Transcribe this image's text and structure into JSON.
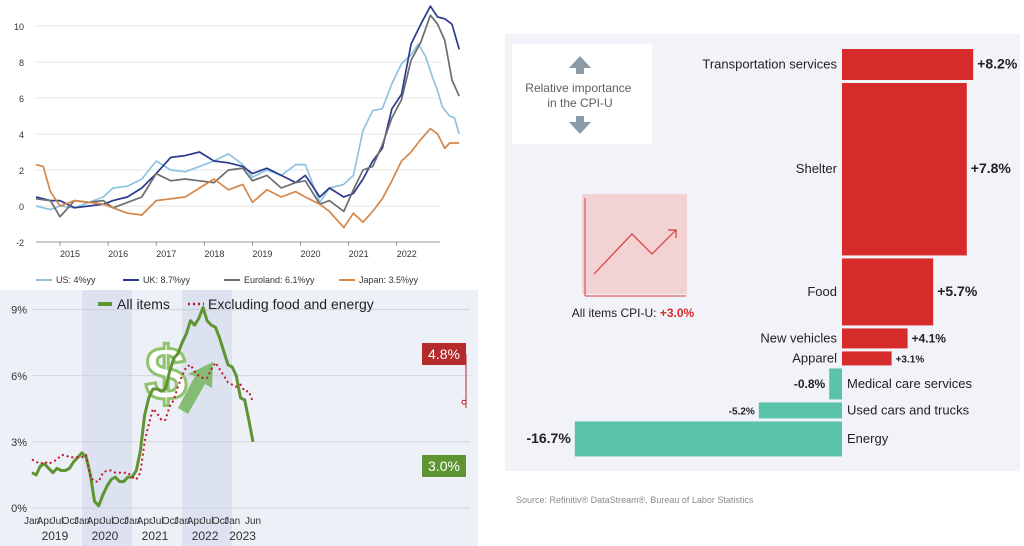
{
  "chart_data": [
    {
      "type": "line",
      "x_ticks": [
        "2015",
        "2016",
        "2017",
        "2018",
        "2019",
        "2020",
        "2021",
        "2022"
      ],
      "y_ticks": [
        "-2",
        "0",
        "2",
        "4",
        "6",
        "8",
        "10"
      ],
      "ylim": [
        -2,
        11
      ],
      "xlim": [
        2014.5,
        2022.9
      ],
      "series": [
        {
          "name": "US: 4%yy",
          "color": "#8ec3e0",
          "points": [
            [
              2014.5,
              0.0
            ],
            [
              2014.8,
              -0.2
            ],
            [
              2015.0,
              0.0
            ],
            [
              2015.3,
              -0.1
            ],
            [
              2015.6,
              0.2
            ],
            [
              2015.9,
              0.5
            ],
            [
              2016.1,
              1.0
            ],
            [
              2016.4,
              1.1
            ],
            [
              2016.7,
              1.5
            ],
            [
              2017.0,
              2.5
            ],
            [
              2017.3,
              2.0
            ],
            [
              2017.6,
              1.9
            ],
            [
              2017.9,
              2.2
            ],
            [
              2018.2,
              2.5
            ],
            [
              2018.5,
              2.9
            ],
            [
              2018.8,
              2.3
            ],
            [
              2019.0,
              1.6
            ],
            [
              2019.3,
              2.0
            ],
            [
              2019.6,
              1.7
            ],
            [
              2019.9,
              2.3
            ],
            [
              2020.1,
              2.3
            ],
            [
              2020.4,
              0.2
            ],
            [
              2020.6,
              1.0
            ],
            [
              2020.9,
              1.2
            ],
            [
              2021.1,
              1.7
            ],
            [
              2021.3,
              4.2
            ],
            [
              2021.5,
              5.3
            ],
            [
              2021.7,
              5.4
            ],
            [
              2021.9,
              6.8
            ],
            [
              2022.1,
              7.9
            ],
            [
              2022.3,
              8.4
            ],
            [
              2022.45,
              9.0
            ],
            [
              2022.6,
              8.3
            ],
            [
              2022.75,
              7.1
            ],
            [
              2022.85,
              6.4
            ],
            [
              2022.95,
              5.5
            ],
            [
              2023.1,
              5.0
            ],
            [
              2023.2,
              4.9
            ],
            [
              2023.3,
              4.0
            ]
          ]
        },
        {
          "name": "UK: 8.7%yy",
          "color": "#2b3a8f",
          "points": [
            [
              2014.5,
              0.5
            ],
            [
              2014.8,
              0.3
            ],
            [
              2015.0,
              0.3
            ],
            [
              2015.3,
              -0.1
            ],
            [
              2015.6,
              0.0
            ],
            [
              2015.9,
              0.1
            ],
            [
              2016.1,
              0.3
            ],
            [
              2016.4,
              0.5
            ],
            [
              2016.7,
              1.0
            ],
            [
              2017.0,
              1.8
            ],
            [
              2017.3,
              2.7
            ],
            [
              2017.6,
              2.8
            ],
            [
              2017.9,
              3.0
            ],
            [
              2018.2,
              2.5
            ],
            [
              2018.5,
              2.4
            ],
            [
              2018.8,
              2.2
            ],
            [
              2019.0,
              1.8
            ],
            [
              2019.3,
              2.1
            ],
            [
              2019.6,
              1.7
            ],
            [
              2019.9,
              1.3
            ],
            [
              2020.1,
              1.7
            ],
            [
              2020.4,
              0.5
            ],
            [
              2020.6,
              1.0
            ],
            [
              2020.9,
              0.5
            ],
            [
              2021.1,
              0.7
            ],
            [
              2021.3,
              1.5
            ],
            [
              2021.5,
              2.5
            ],
            [
              2021.7,
              3.2
            ],
            [
              2021.9,
              5.4
            ],
            [
              2022.1,
              6.2
            ],
            [
              2022.3,
              9.0
            ],
            [
              2022.5,
              10.1
            ],
            [
              2022.7,
              11.1
            ],
            [
              2022.85,
              10.5
            ],
            [
              2023.0,
              10.4
            ],
            [
              2023.15,
              10.1
            ],
            [
              2023.3,
              8.7
            ]
          ]
        },
        {
          "name": "Euroland: 6.1%yy",
          "color": "#6d6d6d",
          "points": [
            [
              2014.5,
              0.4
            ],
            [
              2014.8,
              0.3
            ],
            [
              2015.0,
              -0.6
            ],
            [
              2015.3,
              0.3
            ],
            [
              2015.6,
              0.2
            ],
            [
              2015.9,
              0.3
            ],
            [
              2016.1,
              -0.1
            ],
            [
              2016.4,
              0.2
            ],
            [
              2016.7,
              0.5
            ],
            [
              2017.0,
              1.8
            ],
            [
              2017.3,
              1.4
            ],
            [
              2017.6,
              1.5
            ],
            [
              2017.9,
              1.4
            ],
            [
              2018.2,
              1.3
            ],
            [
              2018.5,
              2.0
            ],
            [
              2018.8,
              2.1
            ],
            [
              2019.0,
              1.4
            ],
            [
              2019.3,
              1.7
            ],
            [
              2019.6,
              1.0
            ],
            [
              2019.9,
              1.3
            ],
            [
              2020.1,
              1.4
            ],
            [
              2020.4,
              0.1
            ],
            [
              2020.6,
              0.3
            ],
            [
              2020.9,
              -0.3
            ],
            [
              2021.1,
              0.9
            ],
            [
              2021.3,
              2.0
            ],
            [
              2021.5,
              2.2
            ],
            [
              2021.7,
              3.4
            ],
            [
              2021.9,
              4.9
            ],
            [
              2022.1,
              5.9
            ],
            [
              2022.3,
              8.1
            ],
            [
              2022.5,
              9.1
            ],
            [
              2022.7,
              10.6
            ],
            [
              2022.85,
              10.1
            ],
            [
              2023.0,
              9.2
            ],
            [
              2023.15,
              7.0
            ],
            [
              2023.3,
              6.1
            ]
          ]
        },
        {
          "name": "Japan: 3.5%yy",
          "color": "#d4874b",
          "points": [
            [
              2014.5,
              2.3
            ],
            [
              2014.65,
              2.2
            ],
            [
              2014.8,
              0.8
            ],
            [
              2015.0,
              0.0
            ],
            [
              2015.3,
              0.3
            ],
            [
              2015.6,
              0.2
            ],
            [
              2015.9,
              0.1
            ],
            [
              2016.1,
              -0.1
            ],
            [
              2016.4,
              -0.4
            ],
            [
              2016.7,
              -0.5
            ],
            [
              2017.0,
              0.3
            ],
            [
              2017.3,
              0.4
            ],
            [
              2017.6,
              0.5
            ],
            [
              2017.9,
              1.0
            ],
            [
              2018.2,
              1.5
            ],
            [
              2018.5,
              0.9
            ],
            [
              2018.8,
              1.2
            ],
            [
              2019.0,
              0.2
            ],
            [
              2019.3,
              0.9
            ],
            [
              2019.6,
              0.5
            ],
            [
              2019.9,
              0.8
            ],
            [
              2020.1,
              0.5
            ],
            [
              2020.4,
              0.1
            ],
            [
              2020.6,
              -0.3
            ],
            [
              2020.9,
              -1.2
            ],
            [
              2021.1,
              -0.4
            ],
            [
              2021.3,
              -0.9
            ],
            [
              2021.5,
              -0.3
            ],
            [
              2021.7,
              0.4
            ],
            [
              2021.9,
              1.4
            ],
            [
              2022.1,
              2.5
            ],
            [
              2022.3,
              3.0
            ],
            [
              2022.5,
              3.7
            ],
            [
              2022.7,
              4.3
            ],
            [
              2022.85,
              4.0
            ],
            [
              2023.0,
              3.2
            ],
            [
              2023.1,
              3.5
            ],
            [
              2023.3,
              3.5
            ]
          ]
        }
      ]
    },
    {
      "type": "line",
      "legend": [
        "All items",
        "Excluding food and energy"
      ],
      "y_ticks": [
        "0%",
        "3%",
        "6%",
        "9%"
      ],
      "ylim": [
        0,
        10
      ],
      "x_month_labels": [
        "Jan",
        "Apr",
        "Jul",
        "Oct",
        "Jan",
        "Apr",
        "Jul",
        "Oct",
        "Jan",
        "Apr",
        "Jul",
        "Oct",
        "Jan",
        "Apr",
        "Jul",
        "Oct",
        "Jan",
        "Jun"
      ],
      "x_year_labels": [
        "2019",
        "2020",
        "2021",
        "2022",
        "2023"
      ],
      "annotations": [
        "4.8%",
        "3.0%"
      ],
      "series": [
        {
          "name": "All items",
          "color": "#5f9432",
          "values": [
            1.6,
            1.5,
            1.9,
            2.0,
            1.8,
            1.6,
            1.8,
            1.7,
            1.7,
            1.8,
            2.1,
            2.3,
            2.5,
            2.3,
            1.5,
            0.3,
            0.1,
            0.6,
            1.0,
            1.3,
            1.4,
            1.2,
            1.2,
            1.4,
            1.4,
            1.7,
            2.6,
            4.2,
            5.0,
            5.4,
            5.4,
            5.3,
            5.4,
            6.2,
            6.8,
            7.0,
            7.5,
            7.9,
            8.5,
            8.3,
            8.6,
            9.1,
            8.5,
            8.3,
            8.2,
            7.7,
            7.1,
            6.5,
            6.4,
            6.0,
            5.0,
            4.9,
            4.0,
            3.0
          ]
        },
        {
          "name": "Excluding food and energy",
          "color": "#c0182a",
          "values": [
            2.2,
            2.1,
            2.0,
            2.1,
            2.0,
            2.1,
            2.2,
            2.4,
            2.4,
            2.3,
            2.3,
            2.3,
            2.3,
            2.4,
            1.4,
            1.2,
            1.2,
            1.6,
            1.7,
            1.7,
            1.6,
            1.6,
            1.6,
            1.6,
            1.4,
            1.3,
            1.6,
            3.0,
            3.8,
            4.5,
            4.3,
            4.0,
            4.0,
            4.6,
            4.9,
            5.5,
            6.0,
            6.4,
            6.5,
            6.2,
            6.0,
            5.9,
            5.9,
            6.3,
            6.6,
            6.3,
            6.0,
            5.7,
            5.6,
            5.5,
            5.6,
            5.3,
            5.3,
            4.8
          ]
        }
      ]
    },
    {
      "type": "bar",
      "subtype": "variable-width",
      "box_label": "Relative importance\nin the CPI-U",
      "inset_label": "All items CPI-U:",
      "inset_value": "+3.0%",
      "bars": [
        {
          "name": "Transportation services",
          "value": "+8.2%",
          "v": 8.2,
          "weight": 6.5,
          "label_size": "large"
        },
        {
          "name": "Shelter",
          "value": "+7.8%",
          "v": 7.8,
          "weight": 34.5,
          "label_size": "large"
        },
        {
          "name": "Food",
          "value": "+5.7%",
          "v": 5.7,
          "weight": 13.5,
          "label_size": "large"
        },
        {
          "name": "New vehicles",
          "value": "+4.1%",
          "v": 4.1,
          "weight": 4.2,
          "label_size": "medium"
        },
        {
          "name": "Apparel",
          "value": "+3.1%",
          "v": 3.1,
          "weight": 2.5,
          "label_size": "small"
        },
        {
          "name": "Medical care services",
          "value": "-0.8%",
          "v": -0.8,
          "weight": 6.7,
          "label_size": "medium"
        },
        {
          "name": "Used cars and trucks",
          "value": "-5.2%",
          "v": -5.2,
          "weight": 2.8,
          "label_size": "small"
        },
        {
          "name": "Energy",
          "value": "-16.7%",
          "v": -16.7,
          "weight": 6.9,
          "label_size": "large"
        }
      ],
      "colors": {
        "positive": "#d52b2b",
        "negative": "#5cc3ab"
      }
    }
  ],
  "source": "Source: Refinitiv® DataStream®, Bureau of Labor Statistics"
}
